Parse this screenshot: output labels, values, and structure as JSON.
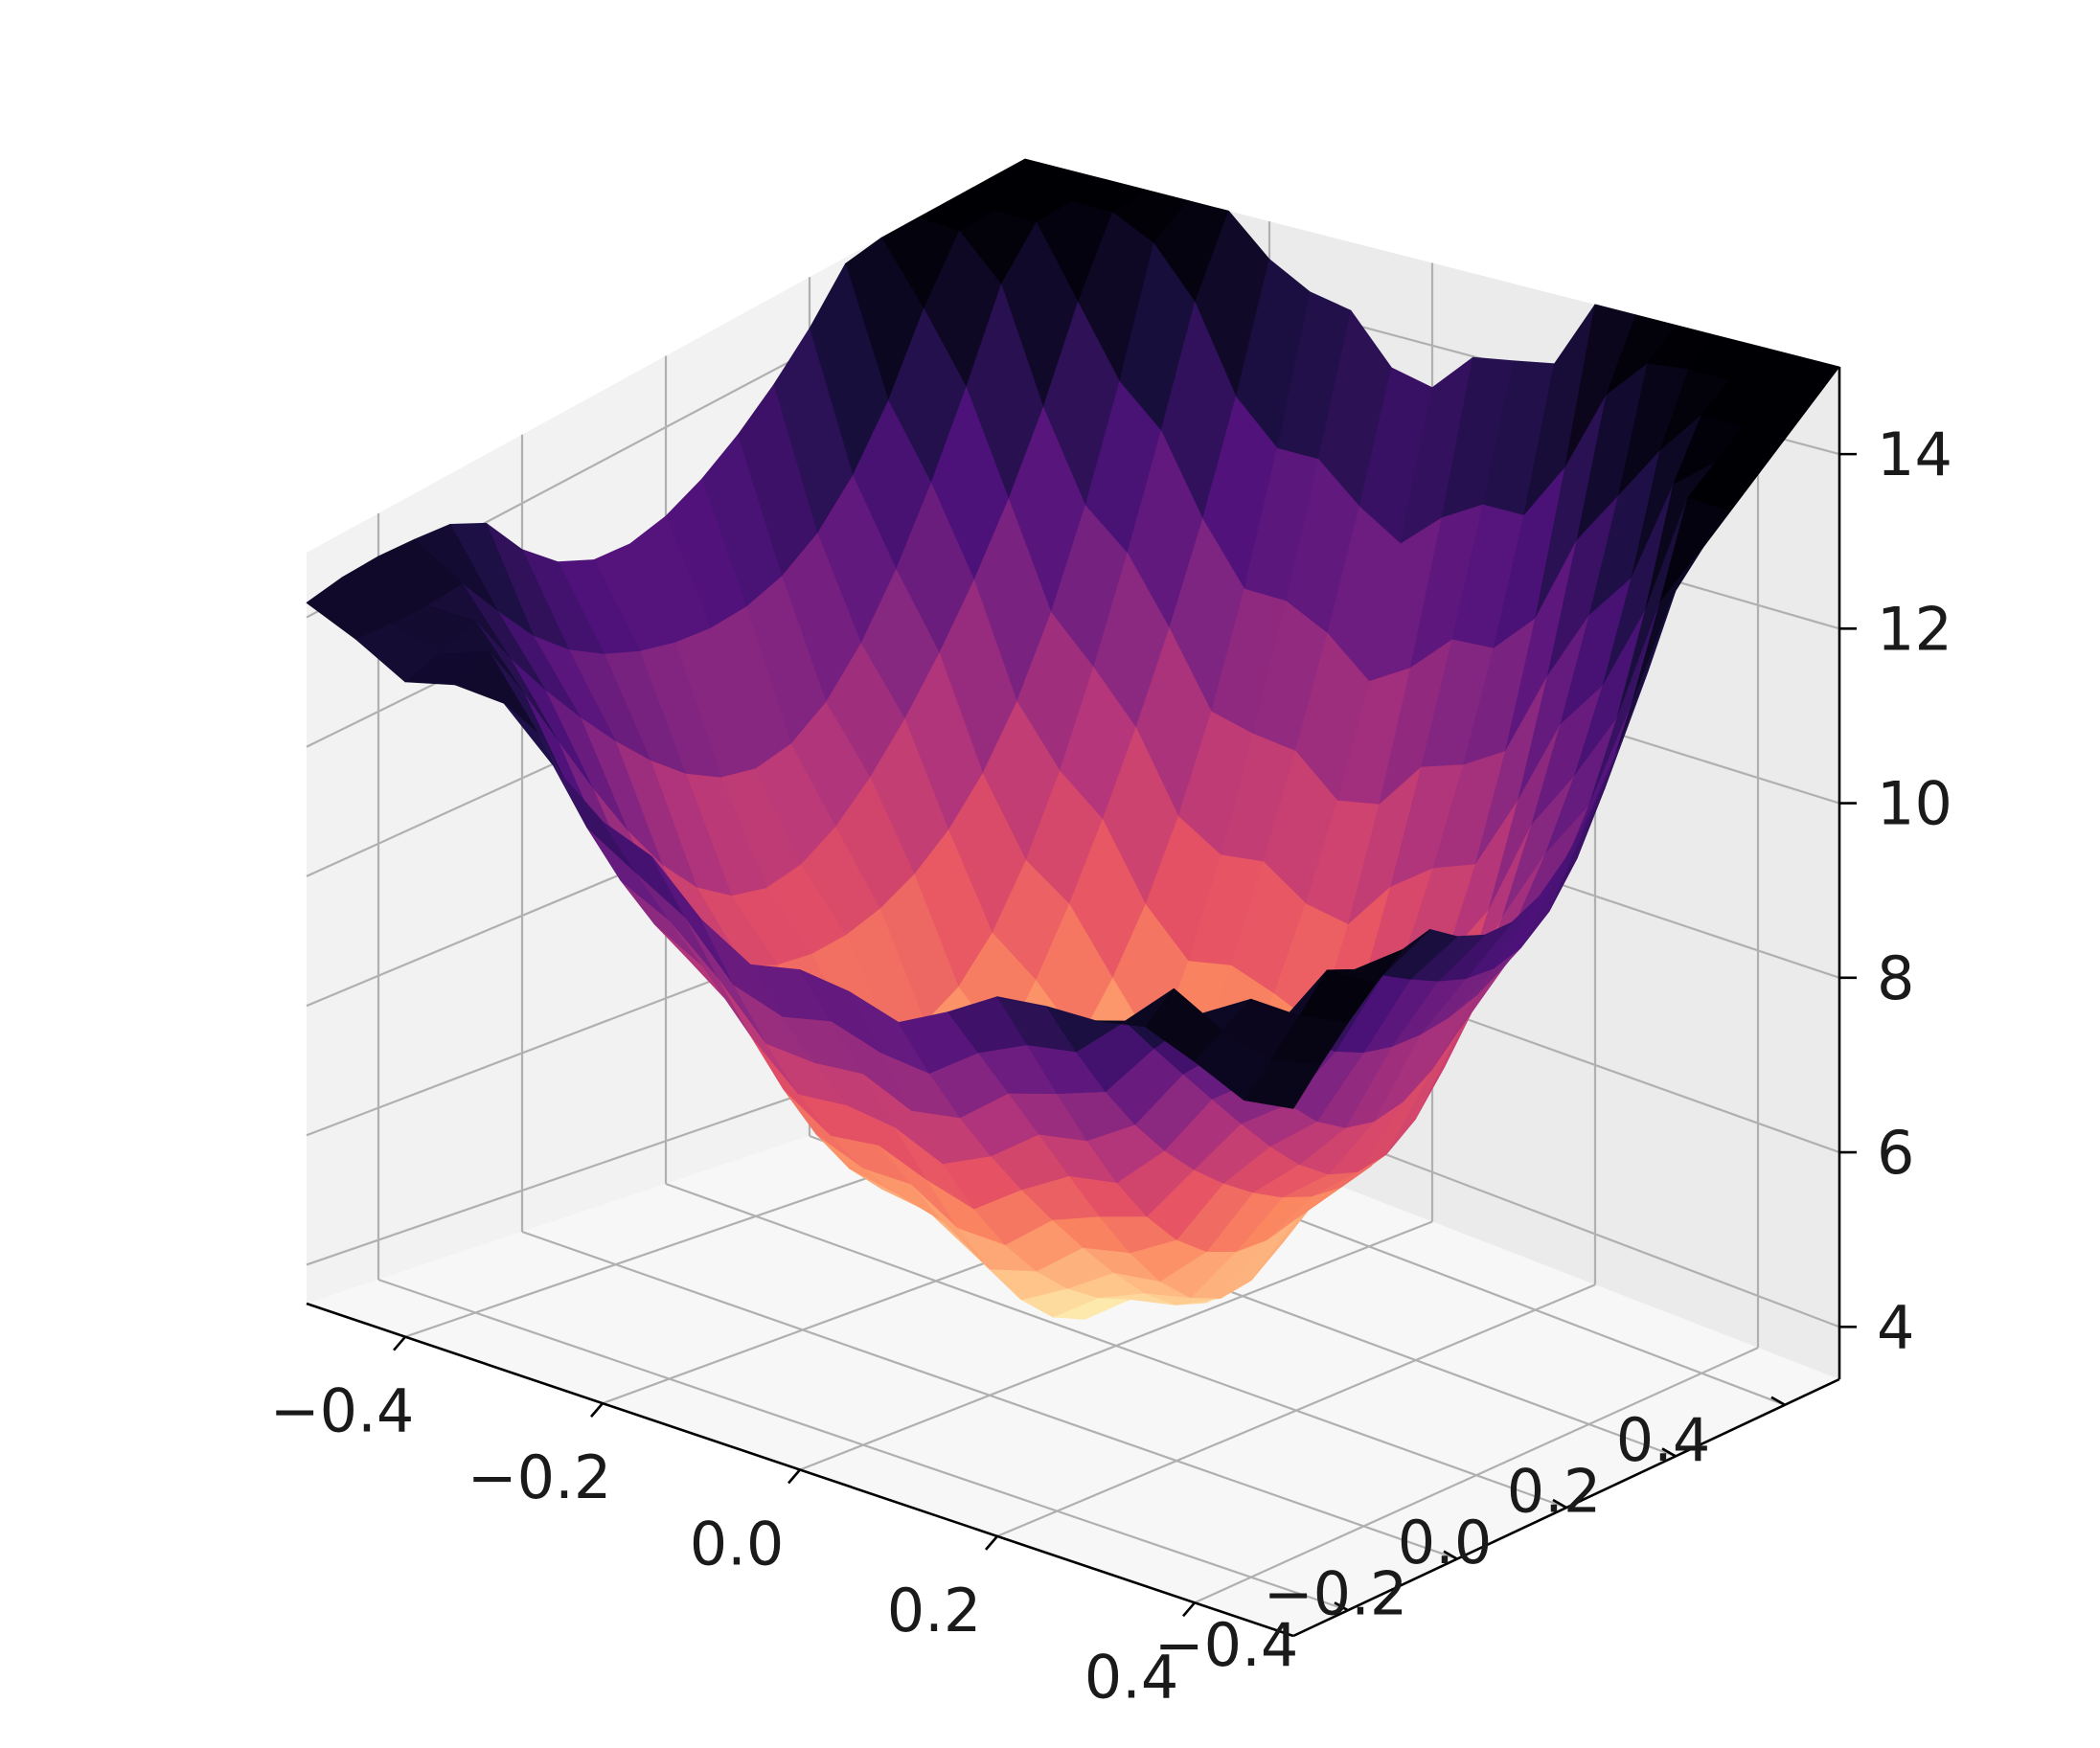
{
  "chart_data": {
    "type": "surface3d",
    "colormap": "magma",
    "x_ticks": [
      "−0.4",
      "−0.2",
      "0.0",
      "0.2",
      "0.4"
    ],
    "y_ticks": [
      "−0.4",
      "−0.2",
      "0.0",
      "0.2",
      "0.4"
    ],
    "z_ticks": [
      "4",
      "6",
      "8",
      "10",
      "12",
      "14"
    ],
    "xlim": [
      -0.5,
      0.5
    ],
    "ylim": [
      -0.5,
      0.5
    ],
    "zlim": [
      3.4,
      15.0
    ],
    "grid": true,
    "grid_size": [
      20,
      20
    ],
    "z_range": [
      3.9,
      15.0
    ],
    "surface_description_points": [
      {
        "x": -0.5,
        "y": -0.5,
        "z": 8.0
      },
      {
        "x": -0.5,
        "y": 0.5,
        "z": 14.0
      },
      {
        "x": 0.5,
        "y": -0.5,
        "z": 8.2
      },
      {
        "x": 0.5,
        "y": 0.5,
        "z": 15.0
      },
      {
        "x": 0.0,
        "y": 0.0,
        "z": 3.9
      }
    ]
  }
}
